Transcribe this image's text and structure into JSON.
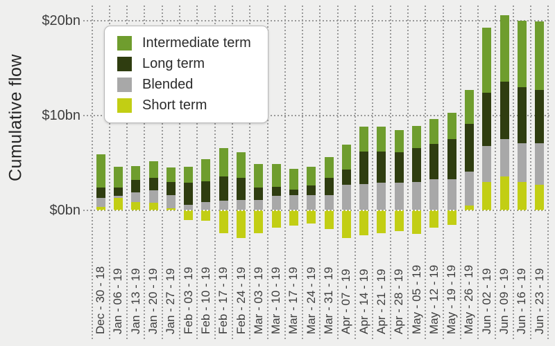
{
  "colors": {
    "background": "#efefee",
    "gridline": "#979797",
    "zero_line_over_bars": "#ffffff",
    "axis_text": "#3d3d3d",
    "title_text": "#252525"
  },
  "chart_data": {
    "type": "bar",
    "variant": "stacked-column-with-negatives",
    "title": "",
    "ylabel": "Cumulative flow",
    "xlabel": "",
    "ylim": [
      -4,
      21
    ],
    "grid": "dotted",
    "legend_position": "top-left",
    "yticks": [
      {
        "value": 20,
        "label": "$20bn"
      },
      {
        "value": 10,
        "label": "$10bn"
      },
      {
        "value": 0,
        "label": "$0bn"
      }
    ],
    "categories": [
      "Dec - 30 - 18",
      "Jan - 06 - 19",
      "Jan - 13 - 19",
      "Jan - 20 - 19",
      "Jan - 27 - 19",
      "Feb - 03 - 19",
      "Feb - 10 - 19",
      "Feb - 17 - 19",
      "Feb - 24 - 19",
      "Mar - 03 - 19",
      "Mar - 10 - 19",
      "Mar - 17 - 19",
      "Mar - 24 - 19",
      "Mar - 31 - 19",
      "Apr - 07 - 19",
      "Apr - 14 - 19",
      "Apr - 21 - 19",
      "Apr - 28 - 19",
      "May - 05 - 19",
      "May - 12 - 19",
      "May - 19 - 19",
      "May - 26 - 19",
      "Jun - 02 - 19",
      "Jun - 09 - 19",
      "Jun - 16 - 19",
      "Jun - 23 - 19"
    ],
    "units": "billions of USD",
    "series": [
      {
        "name": "Intermediate term",
        "color": "#6f9d2e",
        "values": [
          3.5,
          2.2,
          1.5,
          1.8,
          1.5,
          1.7,
          2.3,
          3.0,
          2.7,
          2.5,
          2.4,
          2.2,
          2.0,
          2.2,
          2.6,
          2.6,
          2.6,
          2.4,
          2.3,
          2.6,
          2.8,
          3.6,
          6.9,
          7.0,
          7.0,
          7.2
        ]
      },
      {
        "name": "Long term",
        "color": "#2f3d10",
        "values": [
          1.1,
          0.9,
          1.3,
          1.3,
          1.4,
          2.3,
          2.2,
          2.6,
          2.3,
          1.3,
          1.0,
          0.6,
          1.0,
          1.8,
          1.6,
          3.4,
          3.3,
          3.2,
          3.6,
          3.7,
          4.2,
          5.0,
          5.6,
          6.1,
          5.9,
          5.6
        ]
      },
      {
        "name": "Blended",
        "color": "#a8a8a8",
        "values": [
          0.9,
          0.2,
          1.0,
          1.3,
          1.4,
          0.6,
          0.9,
          1.0,
          1.1,
          1.1,
          1.5,
          1.6,
          1.6,
          1.6,
          2.7,
          2.8,
          2.9,
          2.9,
          3.0,
          3.3,
          3.3,
          3.6,
          3.8,
          3.9,
          4.1,
          4.4
        ]
      },
      {
        "name": "Short term",
        "color": "#c2ce14",
        "values": [
          0.4,
          1.3,
          0.9,
          0.8,
          0.2,
          -1.0,
          -1.1,
          -2.4,
          -2.9,
          -2.4,
          -1.8,
          -1.6,
          -1.4,
          -2.0,
          -2.9,
          -2.6,
          -2.4,
          -2.2,
          -2.5,
          -1.8,
          -1.5,
          0.5,
          3.0,
          3.6,
          3.0,
          2.7
        ]
      }
    ]
  },
  "legend": {
    "items": [
      "Intermediate term",
      "Long term",
      "Blended",
      "Short term"
    ]
  }
}
